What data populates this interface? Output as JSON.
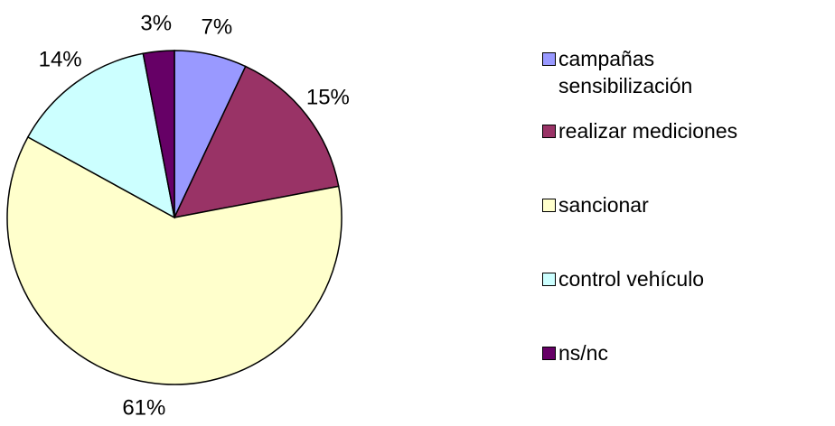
{
  "chart_data": {
    "type": "pie",
    "categories": [
      "campañas sensibilización",
      "realizar mediciones",
      "sancionar",
      "control vehículo",
      "ns/nc"
    ],
    "values": [
      7,
      15,
      61,
      14,
      3
    ],
    "value_labels": [
      "7%",
      "15%",
      "61%",
      "14%",
      "3%"
    ],
    "colors": [
      "#9999ff",
      "#993366",
      "#ffffcc",
      "#ccffff",
      "#660066"
    ],
    "legend": "right"
  }
}
